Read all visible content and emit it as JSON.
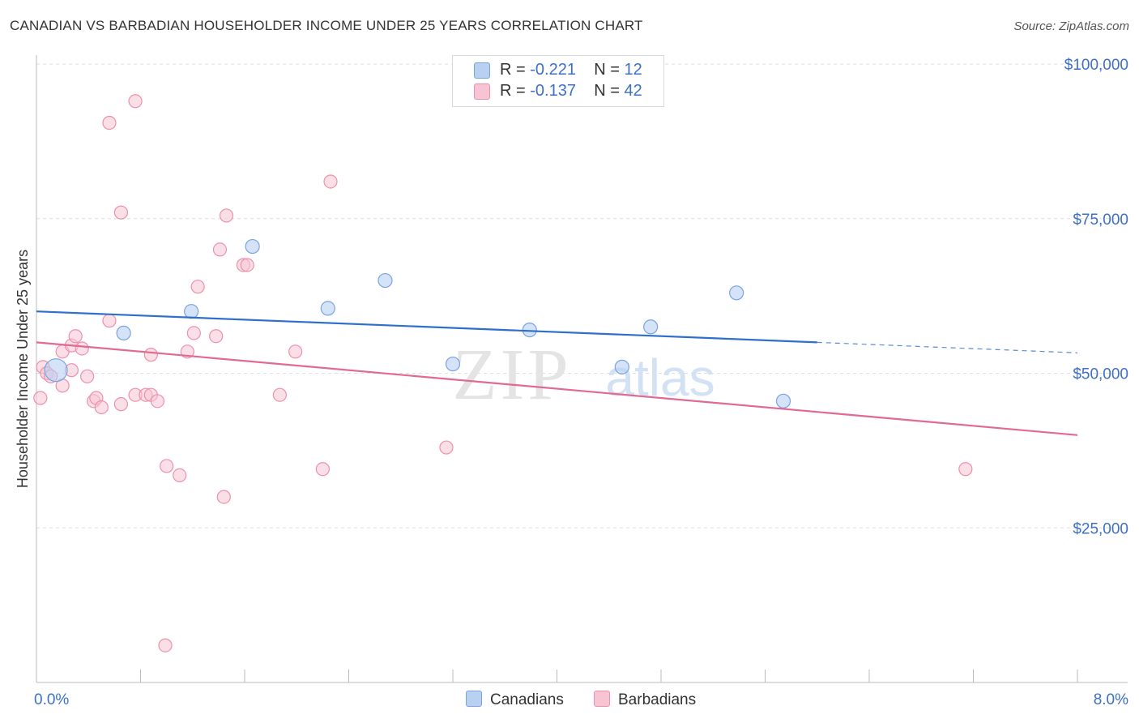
{
  "header": {
    "title": "CANADIAN VS BARBADIAN HOUSEHOLDER INCOME UNDER 25 YEARS CORRELATION CHART",
    "source": "Source: ZipAtlas.com"
  },
  "legend": {
    "rows": [
      {
        "r_label": "R = ",
        "r_value": "-0.221",
        "n_label": "N = ",
        "n_value": "12"
      },
      {
        "r_label": "R = ",
        "r_value": "-0.137",
        "n_label": "N = ",
        "n_value": "42"
      }
    ]
  },
  "bottom_legend": [
    "Canadians",
    "Barbadians"
  ],
  "watermark": {
    "zip": "ZIP",
    "atlas": "atlas"
  },
  "colors": {
    "canadian_fill": "#b8d0f2",
    "canadian_stroke": "#7aa3df",
    "canadian_line": "#2e6fcb",
    "barbadian_fill": "#f8c4d4",
    "barbadian_stroke": "#ec90ae",
    "barbadian_line": "#e06a94",
    "tick_label": "#3d6fc8",
    "grid": "#dddddd"
  },
  "chart_data": {
    "type": "scatter",
    "title": "CANADIAN VS BARBADIAN HOUSEHOLDER INCOME UNDER 25 YEARS CORRELATION CHART",
    "xlabel": "",
    "ylabel": "Householder Income Under 25 years",
    "xlim": [
      0,
      8
    ],
    "ylim": [
      0,
      105000
    ],
    "x_tick_labels": [
      "0.0%",
      "8.0%"
    ],
    "y_ticks": [
      25000,
      50000,
      75000,
      100000
    ],
    "y_tick_labels": [
      "$25,000",
      "$50,000",
      "$75,000",
      "$100,000"
    ],
    "grid": true,
    "legend_placement": "top-center",
    "series": [
      {
        "name": "Canadians",
        "R": -0.221,
        "N": 12,
        "points": [
          [
            0.15,
            50500
          ],
          [
            0.67,
            56500
          ],
          [
            1.19,
            60000
          ],
          [
            1.66,
            70500
          ],
          [
            2.24,
            60500
          ],
          [
            2.68,
            65000
          ],
          [
            3.2,
            51500
          ],
          [
            3.79,
            57000
          ],
          [
            4.5,
            51000
          ],
          [
            4.72,
            57500
          ],
          [
            5.38,
            63000
          ],
          [
            5.74,
            45500
          ]
        ],
        "trend": {
          "x0": 0,
          "y0": 60000,
          "x1": 6.0,
          "y1": 55000,
          "dash_to_x": 8.0,
          "dash_to_y": 53300
        }
      },
      {
        "name": "Barbadians",
        "R": -0.137,
        "N": 42,
        "points": [
          [
            0.03,
            46000
          ],
          [
            0.05,
            51000
          ],
          [
            0.08,
            50000
          ],
          [
            0.11,
            49500
          ],
          [
            0.2,
            48000
          ],
          [
            0.2,
            53500
          ],
          [
            0.27,
            50500
          ],
          [
            0.27,
            54500
          ],
          [
            0.3,
            56000
          ],
          [
            0.35,
            54000
          ],
          [
            0.39,
            49500
          ],
          [
            0.44,
            45500
          ],
          [
            0.46,
            46000
          ],
          [
            0.5,
            44500
          ],
          [
            0.56,
            90500
          ],
          [
            0.56,
            58500
          ],
          [
            0.65,
            76000
          ],
          [
            0.65,
            45000
          ],
          [
            0.76,
            46500
          ],
          [
            0.76,
            94000
          ],
          [
            0.84,
            46500
          ],
          [
            0.88,
            53000
          ],
          [
            0.88,
            46500
          ],
          [
            0.93,
            45500
          ],
          [
            0.99,
            6000
          ],
          [
            1.0,
            35000
          ],
          [
            1.1,
            33500
          ],
          [
            1.16,
            53500
          ],
          [
            1.21,
            56500
          ],
          [
            1.24,
            64000
          ],
          [
            1.38,
            56000
          ],
          [
            1.41,
            70000
          ],
          [
            1.44,
            30000
          ],
          [
            1.46,
            75500
          ],
          [
            1.59,
            67500
          ],
          [
            1.62,
            67500
          ],
          [
            1.87,
            46500
          ],
          [
            1.99,
            53500
          ],
          [
            2.2,
            34500
          ],
          [
            2.26,
            81000
          ],
          [
            3.15,
            38000
          ],
          [
            7.14,
            34500
          ]
        ],
        "trend": {
          "x0": 0,
          "y0": 55000,
          "x1": 8.0,
          "y1": 40000
        }
      }
    ]
  }
}
